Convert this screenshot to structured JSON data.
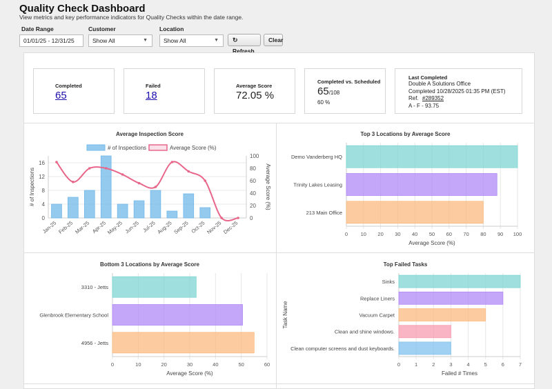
{
  "header": {
    "title": "Quality Check Dashboard",
    "subtitle": "View metrics and key performance indicators for Quality Checks within the date range."
  },
  "filters": {
    "date_range_label": "Date Range",
    "date_range_value": "01/01/25 - 12/31/25",
    "customer_label": "Customer",
    "customer_value": "Show All",
    "location_label": "Location",
    "location_value": "Show All",
    "refresh_label": "Refresh",
    "clear_label": "Clear"
  },
  "kpis": {
    "completed_label": "Completed",
    "completed_value": "65",
    "failed_label": "Failed",
    "failed_value": "18",
    "avg_label": "Average Score",
    "avg_value": "72.05 %",
    "cvs_label": "Completed vs. Scheduled",
    "cvs_value": "65",
    "cvs_total": "/108",
    "cvs_percent": "60 %",
    "last_label": "Last Completed",
    "last_location": "Double A Solutions Office",
    "last_completed": "Completed 10/28/2025 01:35 PM (EST)",
    "last_ref_label": "Ref.",
    "last_ref": "#289352",
    "last_grade": "A - F - 93.75"
  },
  "chart_data": [
    {
      "type": "bar",
      "title": "Average Inspection Score",
      "categories": [
        "Jan-25",
        "Feb-25",
        "Mar-25",
        "Apr-25",
        "May-25",
        "Jun-25",
        "Jul-25",
        "Aug-25",
        "Sep-25",
        "Oct-25",
        "Nov-25",
        "Dec-25"
      ],
      "series": [
        {
          "name": "# of Inspections",
          "type": "bar",
          "axis": "left",
          "values": [
            4,
            6,
            8,
            18,
            4,
            5,
            8,
            2,
            7,
            3,
            0,
            0
          ],
          "color": "#72b8ea"
        },
        {
          "name": "Average Score (%)",
          "type": "line",
          "axis": "right",
          "values": [
            90,
            58,
            80,
            80,
            70,
            56,
            50,
            90,
            75,
            60,
            0,
            0
          ],
          "color": "#e8668a"
        }
      ],
      "ylabel": "# of Inspections",
      "y2label": "Average Score (%)",
      "ylim": [
        0,
        18
      ],
      "yticks": [
        0,
        4,
        8,
        12,
        16
      ],
      "y2lim": [
        0,
        100
      ],
      "y2ticks": [
        0,
        20,
        40,
        60,
        80,
        100
      ],
      "legend": "top"
    },
    {
      "type": "bar",
      "orientation": "horizontal",
      "title": "Top 3 Locations by Average Score",
      "categories": [
        "Demo Vanderberg HQ",
        "Trinity Lakes Leasing",
        "213 Main Office"
      ],
      "values": [
        100,
        88,
        80
      ],
      "colors": [
        "#7fd6d3",
        "#b08af5",
        "#fbbb80"
      ],
      "xlabel": "Average Score (%)",
      "xlim": [
        0,
        100
      ],
      "xticks": [
        0,
        10,
        20,
        30,
        40,
        50,
        60,
        70,
        80,
        90,
        100
      ]
    },
    {
      "type": "bar",
      "orientation": "horizontal",
      "title": "Bottom 3 Locations by Average Score",
      "categories": [
        "3310 - Jetts",
        "Glenbrook Elementary School",
        "4956 - Jetts"
      ],
      "values": [
        32.5,
        50.5,
        55
      ],
      "colors": [
        "#7fd6d3",
        "#b08af5",
        "#fbbb80"
      ],
      "xlabel": "Average Score (%)",
      "xlim": [
        0,
        60
      ],
      "xticks": [
        0,
        10,
        20,
        30,
        40,
        50,
        60
      ]
    },
    {
      "type": "bar",
      "orientation": "horizontal",
      "title": "Top Failed Tasks",
      "categories": [
        "Sinks",
        "Replace Liners",
        "Vacuum Carpet",
        "Clean and shine windows.",
        "Clean computer screens and dust keyboards."
      ],
      "values": [
        7,
        6,
        5,
        3,
        3
      ],
      "colors": [
        "#7fd6d3",
        "#b08af5",
        "#fbbb80",
        "#f79cb0",
        "#82c1ee"
      ],
      "xlabel": "Failed # Times",
      "ylabel": "Task Name",
      "xlim": [
        0,
        7
      ],
      "xticks": [
        0,
        1,
        2,
        3,
        4,
        5,
        6,
        7
      ]
    }
  ]
}
